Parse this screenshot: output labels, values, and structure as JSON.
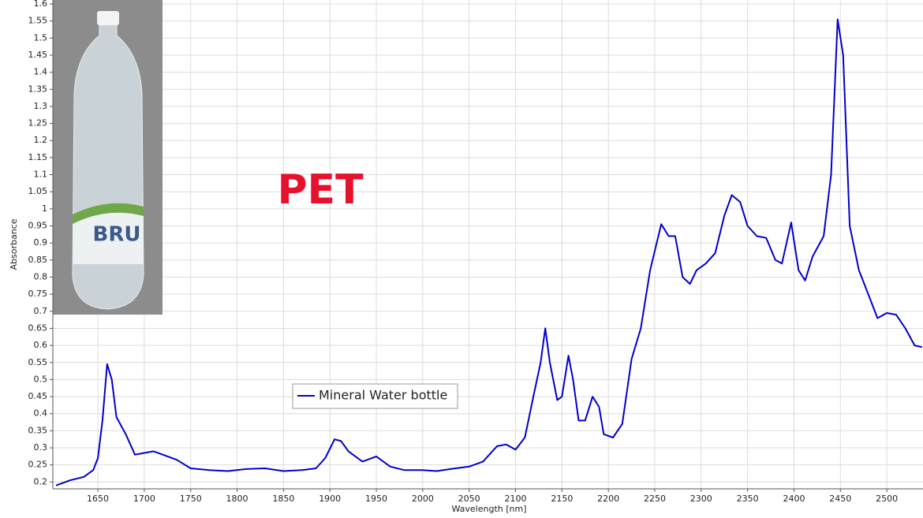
{
  "chart_data": {
    "type": "line",
    "x_label": "Wavelength [nm]",
    "y_label": "Absorbance",
    "annotation": "PET",
    "inset_label": "BRU",
    "xlim": [
      1601.5,
      2539
    ],
    "ylim": [
      0.18,
      1.6
    ],
    "xticks": [
      1650,
      1700,
      1750,
      1800,
      1850,
      1900,
      1950,
      2000,
      2050,
      2100,
      2150,
      2200,
      2250,
      2300,
      2350,
      2400,
      2450,
      2500
    ],
    "yticks": [
      0.2,
      0.25,
      0.3,
      0.35,
      0.4,
      0.45,
      0.5,
      0.55,
      0.6,
      0.65,
      0.7,
      0.75,
      0.8,
      0.85,
      0.9,
      0.95,
      1,
      1.05,
      1.1,
      1.15,
      1.2,
      1.25,
      1.3,
      1.35,
      1.4,
      1.45,
      1.5,
      1.55,
      1.6
    ],
    "grid": true,
    "x": [
      1605,
      1620,
      1635,
      1645,
      1650,
      1655,
      1660,
      1665,
      1670,
      1680,
      1690,
      1700,
      1710,
      1720,
      1735,
      1750,
      1770,
      1790,
      1810,
      1830,
      1850,
      1870,
      1885,
      1895,
      1905,
      1912,
      1920,
      1935,
      1950,
      1965,
      1980,
      2000,
      2015,
      2030,
      2050,
      2065,
      2080,
      2090,
      2100,
      2110,
      2120,
      2127,
      2132,
      2137,
      2145,
      2150,
      2157,
      2162,
      2168,
      2175,
      2183,
      2190,
      2195,
      2205,
      2215,
      2225,
      2235,
      2245,
      2257,
      2265,
      2272,
      2280,
      2288,
      2295,
      2305,
      2315,
      2325,
      2333,
      2342,
      2350,
      2360,
      2370,
      2380,
      2387,
      2397,
      2405,
      2412,
      2420,
      2432,
      2440,
      2447,
      2453,
      2460,
      2470,
      2480,
      2490,
      2500,
      2510,
      2520,
      2530,
      2538
    ],
    "series": [
      {
        "name": "Mineral Water bottle",
        "color": "#0000cc",
        "values": [
          0.19,
          0.205,
          0.215,
          0.235,
          0.27,
          0.38,
          0.545,
          0.5,
          0.39,
          0.34,
          0.28,
          0.285,
          0.29,
          0.28,
          0.265,
          0.24,
          0.235,
          0.232,
          0.238,
          0.24,
          0.232,
          0.235,
          0.24,
          0.27,
          0.325,
          0.32,
          0.29,
          0.26,
          0.275,
          0.245,
          0.235,
          0.235,
          0.232,
          0.238,
          0.245,
          0.26,
          0.305,
          0.31,
          0.295,
          0.33,
          0.46,
          0.55,
          0.65,
          0.55,
          0.44,
          0.45,
          0.57,
          0.5,
          0.38,
          0.38,
          0.45,
          0.42,
          0.34,
          0.33,
          0.37,
          0.56,
          0.65,
          0.82,
          0.955,
          0.92,
          0.92,
          0.8,
          0.78,
          0.82,
          0.84,
          0.87,
          0.98,
          1.04,
          1.02,
          0.95,
          0.92,
          0.915,
          0.85,
          0.84,
          0.96,
          0.82,
          0.79,
          0.86,
          0.92,
          1.1,
          1.555,
          1.45,
          0.95,
          0.82,
          0.75,
          0.68,
          0.695,
          0.69,
          0.65,
          0.6,
          0.595
        ]
      }
    ]
  }
}
